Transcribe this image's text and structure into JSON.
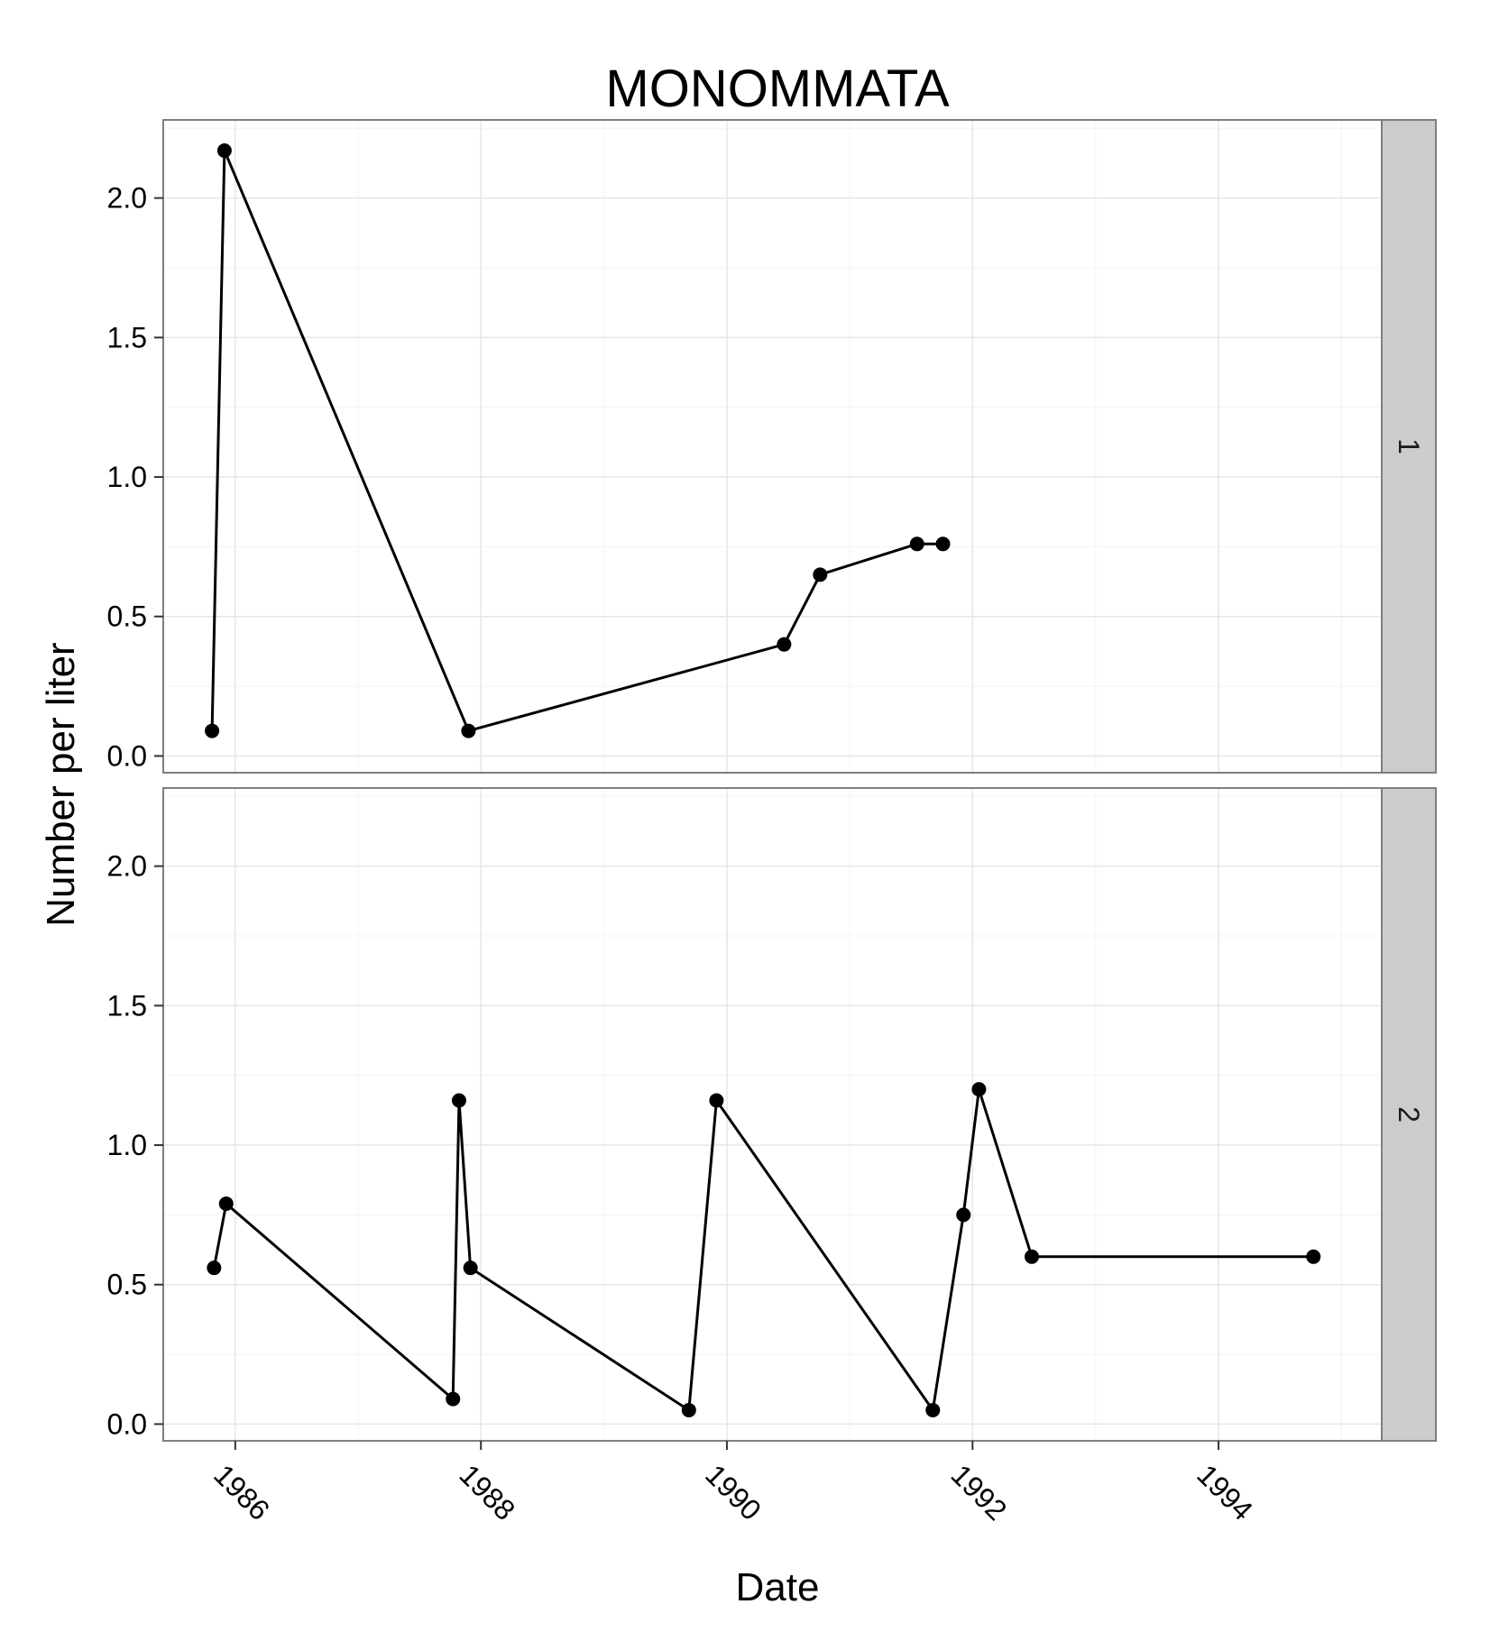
{
  "chart_data": {
    "type": "line",
    "title": "MONOMMATA",
    "xlabel": "Date",
    "ylabel": "Number per liter",
    "x_ticks": [
      "1986",
      "1988",
      "1990",
      "1992",
      "1994"
    ],
    "y_ticks": [
      "0.0",
      "0.5",
      "1.0",
      "1.5",
      "2.0"
    ],
    "xlim": [
      "1985-06-01",
      "1995-05-01"
    ],
    "ylim": [
      -0.06,
      2.28
    ],
    "grid": true,
    "markers": true,
    "line_color": "#000000",
    "strip_color": "#cccccc",
    "facets": [
      {
        "label": "1",
        "x": [
          "1985-10-24",
          "1985-11-30",
          "1987-11-25",
          "1990-06-20",
          "1990-10-05",
          "1991-07-20",
          "1991-10-05"
        ],
        "y": [
          0.09,
          2.17,
          0.09,
          0.4,
          0.65,
          0.76,
          0.76
        ]
      },
      {
        "label": "2",
        "x": [
          "1985-10-30",
          "1985-12-05",
          "1987-10-10",
          "1987-10-28",
          "1987-12-01",
          "1989-09-10",
          "1989-12-01",
          "1991-09-05",
          "1991-12-05",
          "1992-01-20",
          "1992-06-25",
          "1994-10-10"
        ],
        "y": [
          0.56,
          0.79,
          0.09,
          1.16,
          0.56,
          0.05,
          1.16,
          0.05,
          0.75,
          1.2,
          0.6,
          0.6
        ]
      }
    ]
  }
}
